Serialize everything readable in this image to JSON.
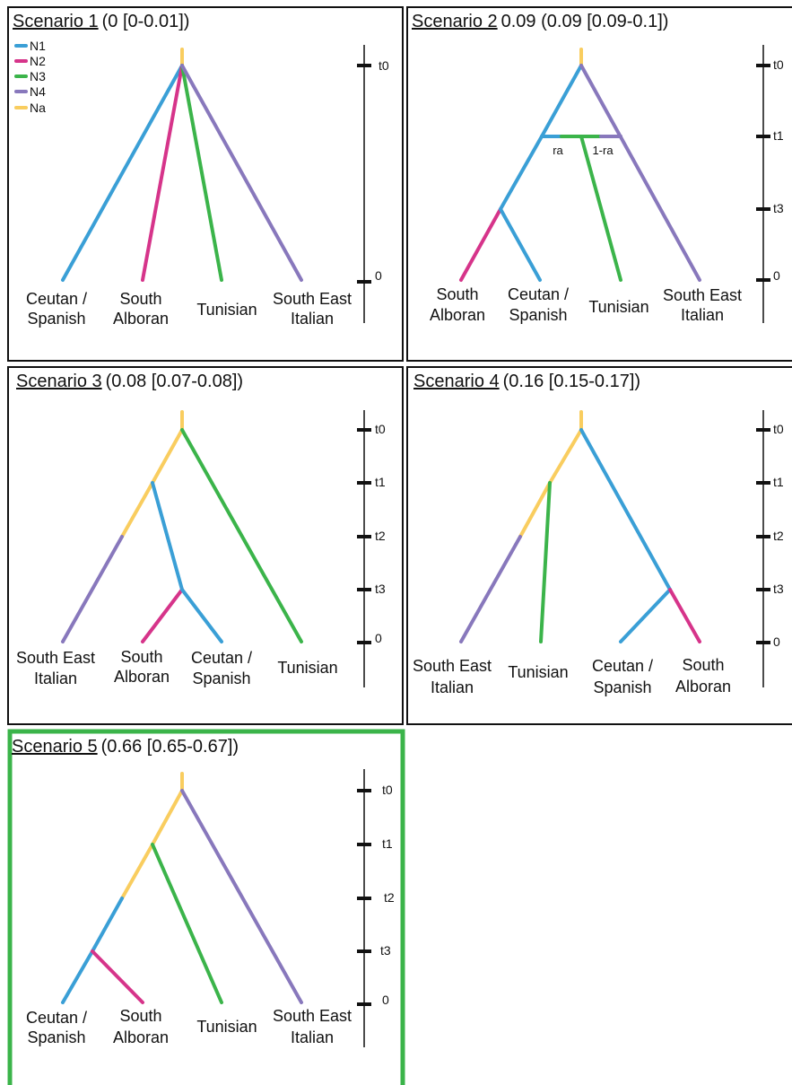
{
  "colors": {
    "N1": "#3a9fd6",
    "N2": "#d6348a",
    "N3": "#3bb44a",
    "N4": "#8878bc",
    "Na": "#f9cd5f",
    "best_frame": "#3bb44a"
  },
  "legend": {
    "items": [
      {
        "label": "N1",
        "color_key": "N1"
      },
      {
        "label": "N2",
        "color_key": "N2"
      },
      {
        "label": "N3",
        "color_key": "N3"
      },
      {
        "label": "N4",
        "color_key": "N4"
      },
      {
        "label": "Na",
        "color_key": "Na"
      }
    ]
  },
  "scenarios": [
    {
      "name": "Scenario 1",
      "stats": "(0 [0-0.01])",
      "best": false,
      "leaves": [
        {
          "lines": [
            "Ceutan /",
            "Spanish"
          ]
        },
        {
          "lines": [
            "South",
            "Alboran"
          ]
        },
        {
          "lines": [
            "Tunisian"
          ]
        },
        {
          "lines": [
            "South East",
            "Italian"
          ]
        }
      ],
      "time_labels": [
        "t0",
        "0"
      ],
      "admixture_labels": []
    },
    {
      "name": "Scenario 2",
      "stats": "0.09 (0.09 [0.09-0.1])",
      "best": false,
      "leaves": [
        {
          "lines": [
            "South",
            "Alboran"
          ]
        },
        {
          "lines": [
            "Ceutan /",
            "Spanish"
          ]
        },
        {
          "lines": [
            "Tunisian"
          ]
        },
        {
          "lines": [
            "South East",
            "Italian"
          ]
        }
      ],
      "time_labels": [
        "t0",
        "t1",
        "t3",
        "0"
      ],
      "admixture_labels": [
        "ra",
        "1-ra"
      ]
    },
    {
      "name": "Scenario 3",
      "stats": "(0.08 [0.07-0.08])",
      "best": false,
      "leaves": [
        {
          "lines": [
            "South East",
            "Italian"
          ]
        },
        {
          "lines": [
            "South",
            "Alboran"
          ]
        },
        {
          "lines": [
            "Ceutan /",
            "Spanish"
          ]
        },
        {
          "lines": [
            "Tunisian"
          ]
        }
      ],
      "time_labels": [
        "t0",
        "t1",
        "t2",
        "t3",
        "0"
      ],
      "admixture_labels": []
    },
    {
      "name": "Scenario 4",
      "stats": "(0.16 [0.15-0.17])",
      "best": false,
      "leaves": [
        {
          "lines": [
            "South East",
            "Italian"
          ]
        },
        {
          "lines": [
            "Tunisian"
          ]
        },
        {
          "lines": [
            "Ceutan /",
            "Spanish"
          ]
        },
        {
          "lines": [
            "South",
            "Alboran"
          ]
        }
      ],
      "time_labels": [
        "t0",
        "t1",
        "t2",
        "t3",
        "0"
      ],
      "admixture_labels": []
    },
    {
      "name": "Scenario 5",
      "stats": "(0.66 [0.65-0.67])",
      "best": true,
      "leaves": [
        {
          "lines": [
            "Ceutan /",
            "Spanish"
          ]
        },
        {
          "lines": [
            "South",
            "Alboran"
          ]
        },
        {
          "lines": [
            "Tunisian"
          ]
        },
        {
          "lines": [
            "South East",
            "Italian"
          ]
        }
      ],
      "time_labels": [
        "t0",
        "t1",
        "t2",
        "t3",
        "0"
      ],
      "admixture_labels": []
    }
  ]
}
